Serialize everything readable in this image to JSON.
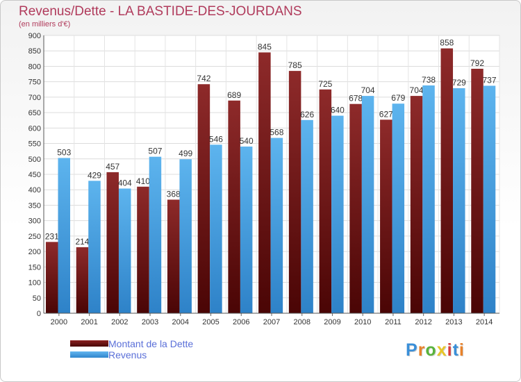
{
  "title": "Revenus/Dette - LA BASTIDE-DES-JOURDANS",
  "subtitle": "(en milliers d'€)",
  "colors": {
    "dette": "#7b1a1a",
    "revenus": "#4aa3e3",
    "title": "#b03a5b",
    "legend_text": "#5a6fd8"
  },
  "legend": [
    {
      "label": "Montant de la Dette",
      "color": "#7b1a1a"
    },
    {
      "label": "Revenus",
      "color": "#4aa3e3"
    }
  ],
  "logo": {
    "text": "Proxiti"
  },
  "chart_data": {
    "type": "bar",
    "categories": [
      "2000",
      "2001",
      "2002",
      "2003",
      "2004",
      "2005",
      "2006",
      "2007",
      "2008",
      "2009",
      "2010",
      "2011",
      "2012",
      "2013",
      "2014"
    ],
    "series": [
      {
        "name": "Montant de la Dette",
        "values": [
          231,
          214,
          457,
          410,
          368,
          742,
          689,
          845,
          785,
          725,
          678,
          627,
          704,
          858,
          792
        ]
      },
      {
        "name": "Revenus",
        "values": [
          503,
          429,
          404,
          507,
          499,
          546,
          540,
          568,
          626,
          640,
          704,
          679,
          738,
          729,
          737
        ]
      }
    ],
    "ylim": [
      0,
      900
    ],
    "yticks": [
      0,
      50,
      100,
      150,
      200,
      250,
      300,
      350,
      400,
      450,
      500,
      550,
      600,
      650,
      700,
      750,
      800,
      850,
      900
    ],
    "grid": true,
    "legend_position": "bottom-left"
  }
}
